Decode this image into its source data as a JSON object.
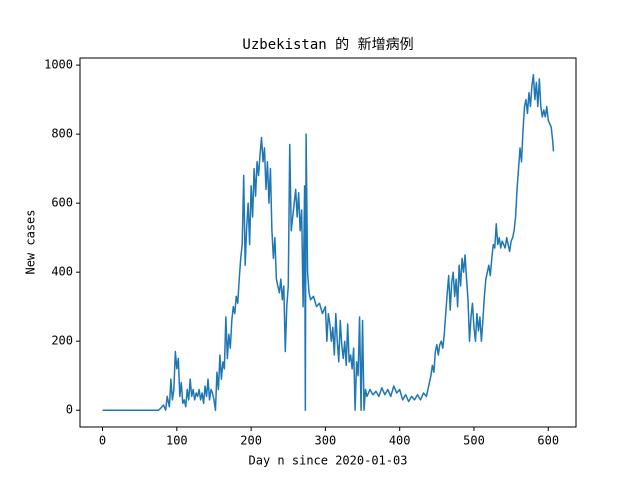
{
  "chart_data": {
    "type": "line",
    "title": "Uzbekistan 的 新增病例",
    "xlabel": "Day n since 2020-01-03",
    "ylabel": "New cases",
    "xlim": [
      -30.35,
      637.35
    ],
    "ylim": [
      -48.6,
      1020.6
    ],
    "xticks": [
      0,
      100,
      200,
      300,
      400,
      500,
      600
    ],
    "yticks": [
      0,
      200,
      400,
      600,
      800,
      1000
    ],
    "x": [
      0,
      75,
      78,
      82,
      85,
      87,
      90,
      92,
      94,
      96,
      98,
      100,
      102,
      104,
      106,
      108,
      110,
      112,
      114,
      116,
      118,
      120,
      122,
      124,
      126,
      128,
      130,
      132,
      134,
      136,
      138,
      140,
      142,
      144,
      146,
      148,
      150,
      152,
      154,
      156,
      158,
      160,
      162,
      164,
      166,
      168,
      170,
      172,
      174,
      176,
      178,
      180,
      182,
      184,
      186,
      188,
      190,
      192,
      194,
      196,
      198,
      200,
      202,
      204,
      206,
      208,
      210,
      212,
      214,
      216,
      218,
      220,
      222,
      224,
      226,
      228,
      230,
      232,
      234,
      236,
      238,
      240,
      242,
      244,
      246,
      248,
      250,
      252,
      254,
      256,
      258,
      260,
      262,
      264,
      266,
      268,
      270,
      272,
      273,
      274,
      276,
      278,
      280,
      284,
      288,
      292,
      296,
      300,
      302,
      304,
      306,
      308,
      310,
      312,
      314,
      316,
      318,
      320,
      322,
      324,
      326,
      328,
      330,
      332,
      334,
      336,
      338,
      340,
      342,
      344,
      346,
      348,
      350,
      352,
      354,
      356,
      360,
      364,
      368,
      372,
      376,
      380,
      384,
      388,
      392,
      396,
      400,
      404,
      408,
      412,
      416,
      420,
      424,
      428,
      432,
      436,
      440,
      442,
      444,
      446,
      448,
      450,
      452,
      454,
      456,
      458,
      460,
      462,
      464,
      466,
      468,
      470,
      472,
      474,
      476,
      478,
      480,
      482,
      484,
      486,
      488,
      490,
      492,
      494,
      496,
      498,
      500,
      502,
      504,
      506,
      508,
      510,
      512,
      514,
      516,
      518,
      520,
      522,
      524,
      526,
      528,
      530,
      532,
      534,
      536,
      538,
      540,
      542,
      544,
      546,
      548,
      550,
      552,
      554,
      556,
      558,
      560,
      562,
      564,
      566,
      568,
      570,
      572,
      574,
      576,
      578,
      580,
      582,
      584,
      586,
      588,
      590,
      592,
      594,
      596,
      598,
      600,
      602,
      604,
      606,
      607
    ],
    "series": [
      {
        "name": "New cases",
        "color": "#1f77b4",
        "values": [
          0,
          0,
          5,
          15,
          0,
          40,
          10,
          90,
          30,
          60,
          170,
          120,
          150,
          40,
          80,
          20,
          30,
          10,
          60,
          30,
          90,
          40,
          60,
          30,
          50,
          40,
          60,
          30,
          50,
          20,
          70,
          40,
          90,
          30,
          60,
          50,
          30,
          0,
          110,
          60,
          160,
          90,
          140,
          120,
          270,
          150,
          220,
          180,
          260,
          300,
          280,
          330,
          310,
          380,
          440,
          480,
          680,
          420,
          530,
          600,
          480,
          650,
          560,
          700,
          620,
          720,
          680,
          740,
          790,
          720,
          760,
          640,
          720,
          600,
          700,
          520,
          440,
          500,
          380,
          360,
          340,
          380,
          320,
          360,
          170,
          300,
          360,
          770,
          520,
          560,
          600,
          640,
          560,
          630,
          520,
          580,
          300,
          650,
          0,
          800,
          400,
          340,
          320,
          330,
          300,
          310,
          280,
          300,
          200,
          280,
          250,
          200,
          240,
          160,
          280,
          200,
          140,
          260,
          190,
          150,
          200,
          130,
          250,
          140,
          160,
          120,
          180,
          0,
          140,
          100,
          270,
          0,
          260,
          0,
          60,
          40,
          60,
          45,
          55,
          40,
          65,
          45,
          60,
          40,
          70,
          50,
          60,
          30,
          45,
          25,
          40,
          30,
          45,
          30,
          50,
          40,
          80,
          100,
          130,
          110,
          170,
          190,
          160,
          190,
          200,
          180,
          220,
          280,
          340,
          390,
          290,
          370,
          400,
          330,
          380,
          300,
          420,
          360,
          440,
          400,
          450,
          380,
          320,
          200,
          270,
          310,
          240,
          200,
          280,
          230,
          270,
          200,
          260,
          330,
          380,
          400,
          420,
          390,
          440,
          480,
          470,
          540,
          480,
          500,
          470,
          490,
          480,
          470,
          500,
          480,
          460,
          490,
          500,
          520,
          560,
          640,
          700,
          760,
          720,
          810,
          880,
          900,
          860,
          920,
          880,
          940,
          972,
          900,
          950,
          880,
          960,
          880,
          850,
          870,
          850,
          880,
          840,
          830,
          820,
          780,
          750
        ]
      }
    ]
  }
}
